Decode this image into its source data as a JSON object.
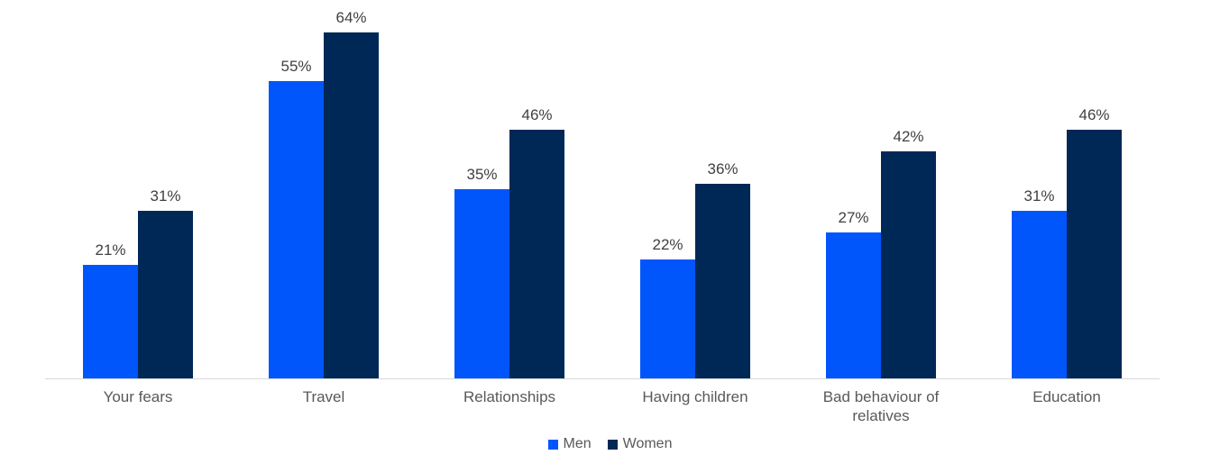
{
  "chart_data": {
    "type": "bar",
    "title": "",
    "xlabel": "",
    "ylabel": "",
    "categories": [
      "Your fears",
      "Travel",
      "Relationships",
      "Having children",
      "Bad behaviour of relatives",
      "Education"
    ],
    "series": [
      {
        "name": "Men",
        "color": "#0056FB",
        "values": [
          21,
          55,
          35,
          22,
          27,
          31
        ]
      },
      {
        "name": "Women",
        "color": "#002856",
        "values": [
          31,
          64,
          46,
          36,
          42,
          46
        ]
      }
    ],
    "value_suffix": "%",
    "ylim": [
      0,
      70
    ],
    "grid": false,
    "y_axis_visible": false,
    "legend_position": "bottom"
  },
  "colors": {
    "background": "#FFFFFF",
    "axis_line": "#D8D8D8",
    "data_label": "#404040",
    "category_label": "#595959",
    "legend_label": "#595959"
  }
}
